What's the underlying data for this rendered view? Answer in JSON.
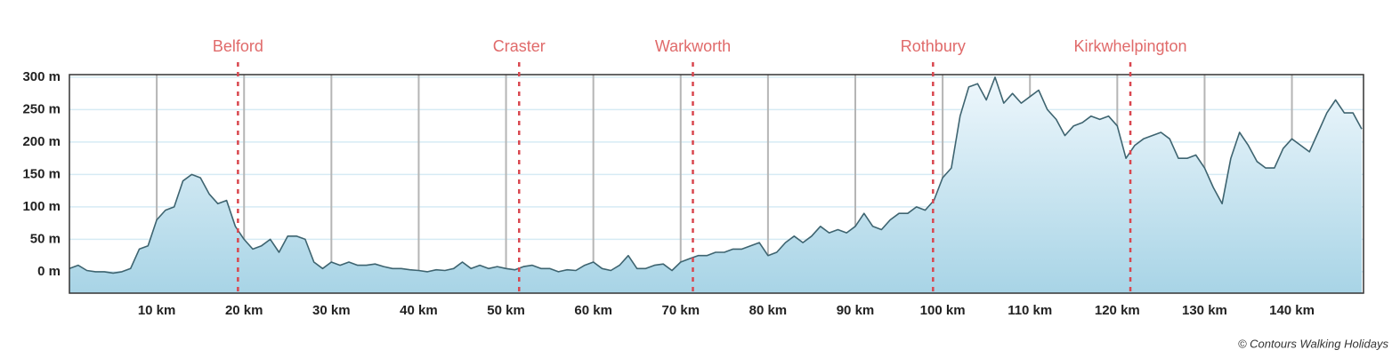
{
  "chart_data": {
    "type": "area",
    "x": [
      0,
      1,
      2,
      3,
      4,
      5,
      6,
      7,
      8,
      9,
      10,
      11,
      12,
      13,
      14,
      15,
      16,
      17,
      18,
      19,
      20,
      21,
      22,
      23,
      24,
      25,
      26,
      27,
      28,
      29,
      30,
      31,
      32,
      33,
      34,
      35,
      36,
      37,
      38,
      39,
      40,
      41,
      42,
      43,
      44,
      45,
      46,
      47,
      48,
      49,
      50,
      51,
      52,
      53,
      54,
      55,
      56,
      57,
      58,
      59,
      60,
      61,
      62,
      63,
      64,
      65,
      66,
      67,
      68,
      69,
      70,
      71,
      72,
      73,
      74,
      75,
      76,
      77,
      78,
      79,
      80,
      81,
      82,
      83,
      84,
      85,
      86,
      87,
      88,
      89,
      90,
      91,
      92,
      93,
      94,
      95,
      96,
      97,
      98,
      99,
      100,
      101,
      102,
      103,
      104,
      105,
      106,
      107,
      108,
      109,
      110,
      111,
      112,
      113,
      114,
      115,
      116,
      117,
      118,
      119,
      120,
      121,
      122,
      123,
      124,
      125,
      126,
      127,
      128,
      129,
      130,
      131,
      132,
      133,
      134,
      135,
      136,
      137,
      138,
      139,
      140,
      141,
      142,
      143,
      144,
      145,
      146,
      147,
      148
    ],
    "values": [
      5,
      10,
      2,
      0,
      0,
      -2,
      0,
      5,
      35,
      40,
      80,
      95,
      100,
      140,
      150,
      145,
      120,
      105,
      110,
      70,
      50,
      35,
      40,
      50,
      30,
      55,
      55,
      50,
      15,
      5,
      15,
      10,
      15,
      10,
      10,
      12,
      8,
      5,
      5,
      3,
      2,
      0,
      3,
      2,
      5,
      15,
      5,
      10,
      5,
      8,
      5,
      3,
      8,
      10,
      5,
      5,
      0,
      3,
      2,
      10,
      15,
      5,
      2,
      10,
      25,
      5,
      5,
      10,
      12,
      2,
      15,
      20,
      25,
      25,
      30,
      30,
      35,
      35,
      40,
      45,
      25,
      30,
      45,
      55,
      45,
      55,
      70,
      60,
      65,
      60,
      70,
      90,
      70,
      65,
      80,
      90,
      90,
      100,
      95,
      110,
      145,
      160,
      240,
      285,
      290,
      265,
      300,
      260,
      275,
      260,
      270,
      280,
      250,
      235,
      210,
      225,
      230,
      240,
      235,
      240,
      225,
      175,
      195,
      205,
      210,
      215,
      205,
      175,
      175,
      180,
      160,
      130,
      105,
      175,
      215,
      195,
      170,
      160,
      160,
      190,
      205,
      195,
      185,
      215,
      245,
      265,
      245,
      245,
      220
    ],
    "line_color": "#3e6470",
    "xlim": [
      0,
      148.2
    ],
    "ylim": [
      -33,
      304
    ],
    "xticks": [
      {
        "value": 10,
        "label": "10 km"
      },
      {
        "value": 20,
        "label": "20 km"
      },
      {
        "value": 30,
        "label": "30 km"
      },
      {
        "value": 40,
        "label": "40 km"
      },
      {
        "value": 50,
        "label": "50 km"
      },
      {
        "value": 60,
        "label": "60 km"
      },
      {
        "value": 70,
        "label": "70 km"
      },
      {
        "value": 80,
        "label": "80 km"
      },
      {
        "value": 90,
        "label": "90 km"
      },
      {
        "value": 100,
        "label": "100 km"
      },
      {
        "value": 110,
        "label": "110 km"
      },
      {
        "value": 120,
        "label": "120 km"
      },
      {
        "value": 130,
        "label": "130 km"
      },
      {
        "value": 140,
        "label": "140 km"
      }
    ],
    "yticks": [
      {
        "value": 0,
        "label": "0 m"
      },
      {
        "value": 50,
        "label": "50 m"
      },
      {
        "value": 100,
        "label": "100 m"
      },
      {
        "value": 150,
        "label": "150 m"
      },
      {
        "value": 200,
        "label": "200 m"
      },
      {
        "value": 250,
        "label": "250 m"
      },
      {
        "value": 300,
        "label": "300 m"
      }
    ],
    "grid": true,
    "markers": [
      {
        "label": "Belford",
        "x": 19.3
      },
      {
        "label": "Craster",
        "x": 51.5
      },
      {
        "label": "Warkworth",
        "x": 71.4
      },
      {
        "label": "Rothbury",
        "x": 98.9
      },
      {
        "label": "Kirkwhelpington",
        "x": 121.5
      }
    ],
    "marker_color": "#d9474f",
    "credit": "© Contours Walking Holidays"
  }
}
